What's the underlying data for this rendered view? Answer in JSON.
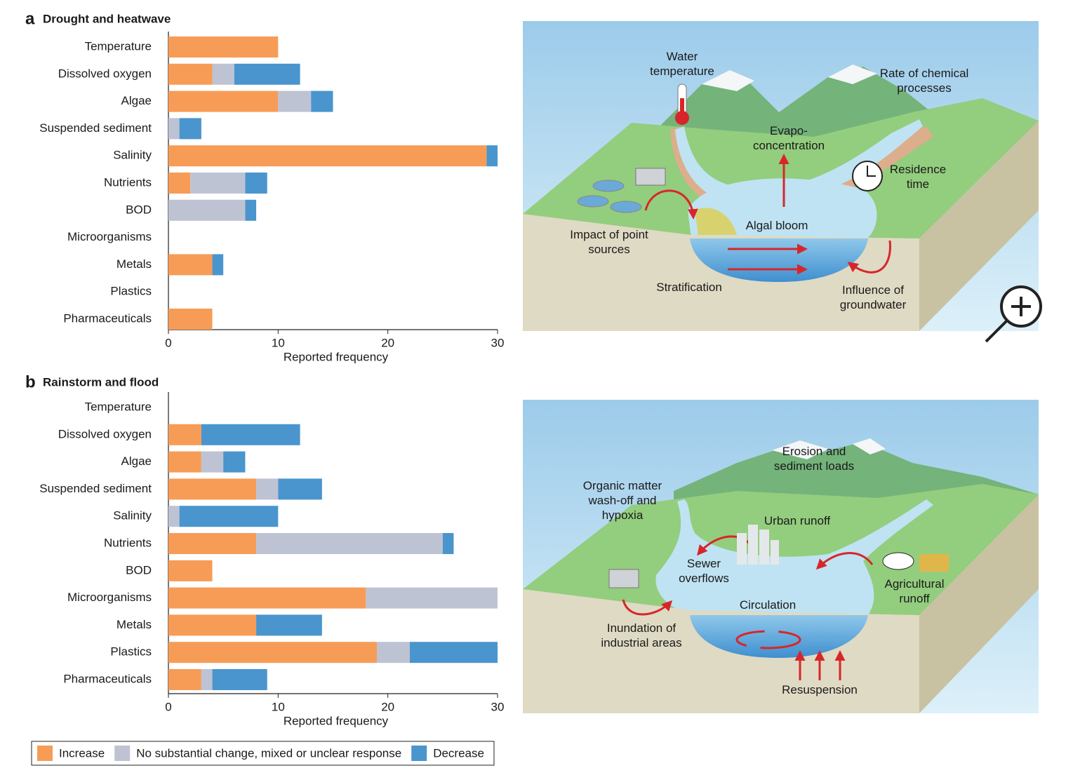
{
  "chart_data": [
    {
      "type": "bar",
      "orientation": "horizontal",
      "stacked": true,
      "label": "a",
      "title": "Drought and heatwave",
      "categories": [
        "Temperature",
        "Dissolved oxygen",
        "Algae",
        "Suspended sediment",
        "Salinity",
        "Nutrients",
        "BOD",
        "Microorganisms",
        "Metals",
        "Plastics",
        "Pharmaceuticals"
      ],
      "series": [
        {
          "color": "#f79c56",
          "values": [
            10,
            4,
            10,
            0,
            29,
            2,
            0,
            0,
            4,
            0,
            4
          ]
        },
        {
          "color": "#bec3d4",
          "values": [
            0,
            2,
            3,
            1,
            0,
            5,
            7,
            0,
            0,
            0,
            0
          ]
        },
        {
          "color": "#4a95cd",
          "values": [
            0,
            6,
            2,
            2,
            1,
            2,
            1,
            0,
            1,
            0,
            0
          ]
        }
      ],
      "xlim": [
        0,
        30
      ],
      "xticks": [
        0,
        10,
        20,
        30
      ],
      "xlabel": "Reported frequency"
    },
    {
      "type": "bar",
      "orientation": "horizontal",
      "stacked": true,
      "label": "b",
      "title": "Rainstorm and flood",
      "categories": [
        "Temperature",
        "Dissolved oxygen",
        "Algae",
        "Suspended sediment",
        "Salinity",
        "Nutrients",
        "BOD",
        "Microorganisms",
        "Metals",
        "Plastics",
        "Pharmaceuticals"
      ],
      "series": [
        {
          "name": "Increase",
          "color": "#f79c56",
          "values": [
            0,
            3,
            3,
            8,
            0,
            8,
            4,
            18,
            8,
            19,
            3
          ]
        },
        {
          "name": "No substantial change, mixed or unclear response",
          "color": "#bec3d4",
          "values": [
            0,
            0,
            2,
            2,
            1,
            17,
            0,
            12,
            0,
            3,
            1
          ]
        },
        {
          "name": "Decrease",
          "color": "#4a95cd",
          "values": [
            0,
            9,
            2,
            4,
            9,
            1,
            0,
            0,
            6,
            8,
            5
          ]
        }
      ],
      "xlim": [
        0,
        30
      ],
      "xticks": [
        0,
        10,
        20,
        30
      ],
      "xlabel": "Reported frequency"
    }
  ],
  "diagrams": [
    {
      "labels": [
        [
          "Water",
          "temperature"
        ],
        [
          "Rate of chemical",
          "processes"
        ],
        [
          "Evapo-",
          "concentration"
        ],
        [
          "Residence",
          "time"
        ],
        [
          "Impact of point",
          "sources"
        ],
        [
          "Algal bloom"
        ],
        [
          "Stratification"
        ],
        [
          "Influence of",
          "groundwater"
        ]
      ]
    },
    {
      "labels": [
        [
          "Erosion and",
          "sediment loads"
        ],
        [
          "Organic matter",
          "wash-off and",
          "hypoxia"
        ],
        [
          "Urban runoff"
        ],
        [
          "Sewer",
          "overflows"
        ],
        [
          "Agricultural",
          "runoff"
        ],
        [
          "Circulation"
        ],
        [
          "Inundation of",
          "industrial areas"
        ],
        [
          "Resuspension"
        ]
      ]
    }
  ]
}
